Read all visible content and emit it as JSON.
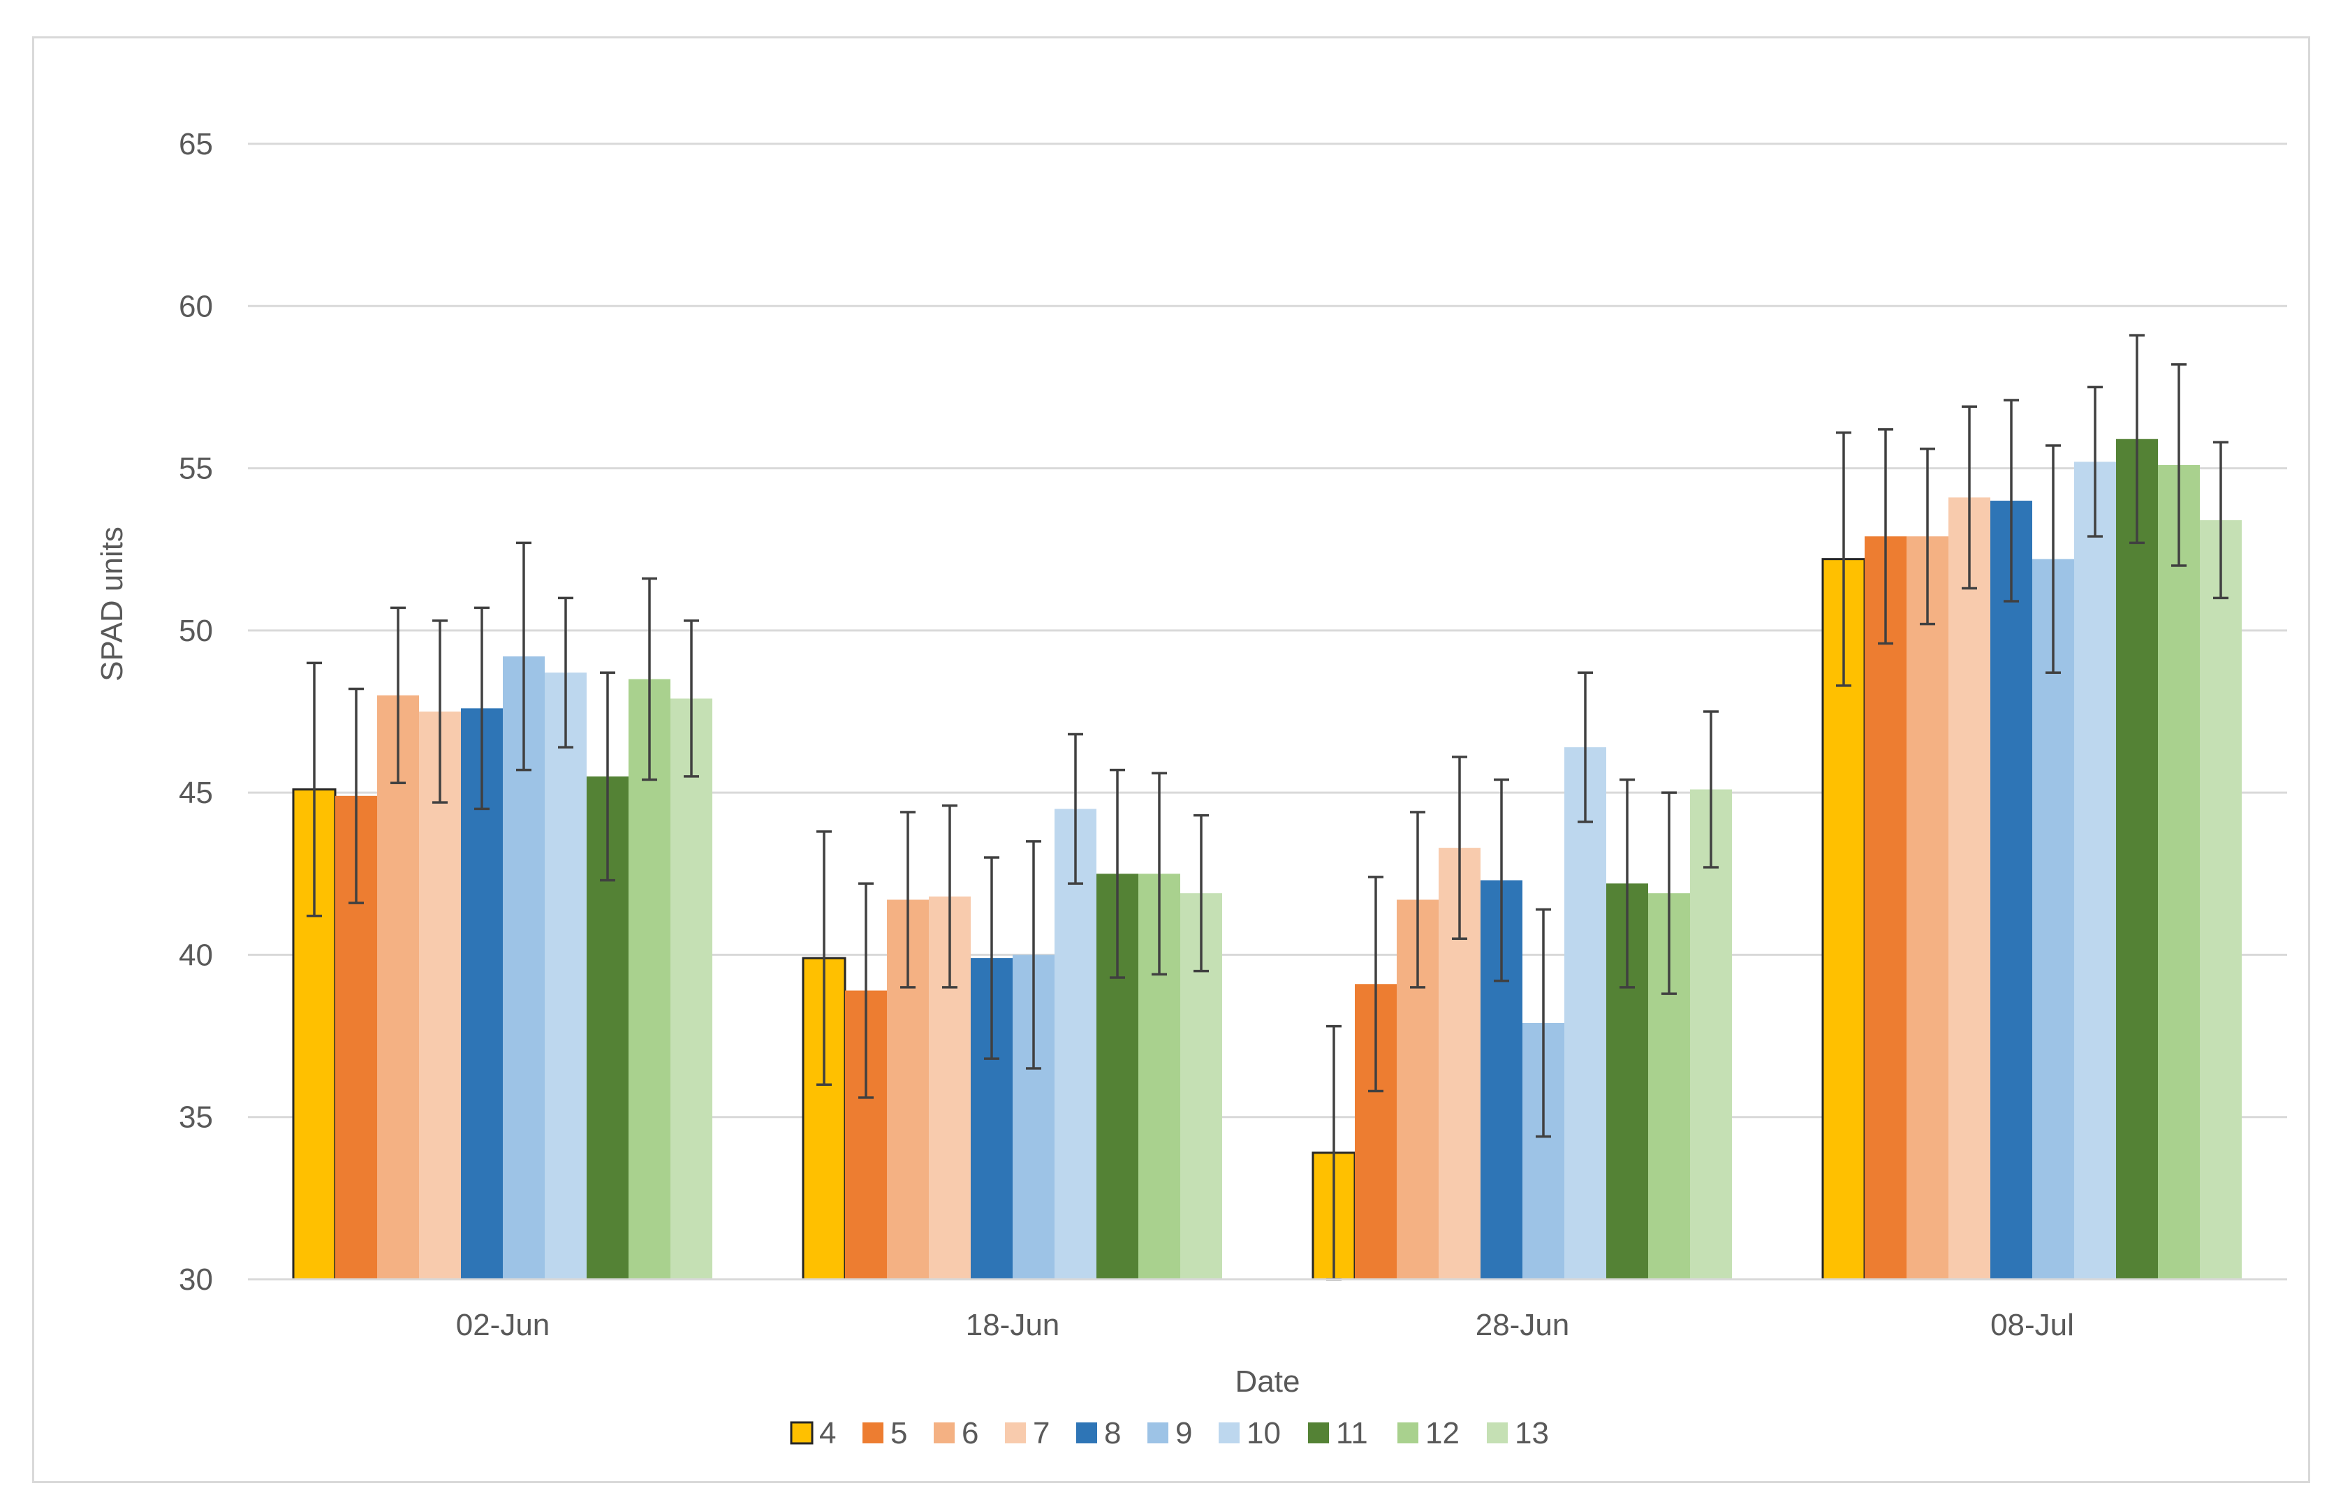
{
  "chart_data": {
    "type": "bar",
    "title": "",
    "xlabel": "Date",
    "ylabel": "SPAD units",
    "ylim": [
      30,
      65
    ],
    "yticks": [
      30,
      35,
      40,
      45,
      50,
      55,
      60,
      65
    ],
    "grid": true,
    "legend_position": "bottom",
    "categories": [
      "02-Jun",
      "18-Jun",
      "28-Jun",
      "08-Jul"
    ],
    "series": [
      {
        "name": "4",
        "color": "#FFC000",
        "outlined": true,
        "values": [
          45.1,
          39.9,
          33.9,
          52.2
        ],
        "errors": [
          3.9,
          3.9,
          3.9,
          3.9
        ]
      },
      {
        "name": "5",
        "color": "#ED7D31",
        "values": [
          44.9,
          38.9,
          39.1,
          52.9
        ],
        "errors": [
          3.3,
          3.3,
          3.3,
          3.3
        ]
      },
      {
        "name": "6",
        "color": "#F4B183",
        "values": [
          48.0,
          41.7,
          41.7,
          52.9
        ],
        "errors": [
          2.7,
          2.7,
          2.7,
          2.7
        ]
      },
      {
        "name": "7",
        "color": "#F8CBAD",
        "values": [
          47.5,
          41.8,
          43.3,
          54.1
        ],
        "errors": [
          2.8,
          2.8,
          2.8,
          2.8
        ]
      },
      {
        "name": "8",
        "color": "#2E75B6",
        "values": [
          47.6,
          39.9,
          42.3,
          54.0
        ],
        "errors": [
          3.1,
          3.1,
          3.1,
          3.1
        ]
      },
      {
        "name": "9",
        "color": "#9DC3E6",
        "values": [
          49.2,
          40.0,
          37.9,
          52.2
        ],
        "errors": [
          3.5,
          3.5,
          3.5,
          3.5
        ]
      },
      {
        "name": "10",
        "color": "#BDD7EE",
        "values": [
          48.7,
          44.5,
          46.4,
          55.2
        ],
        "errors": [
          2.3,
          2.3,
          2.3,
          2.3
        ]
      },
      {
        "name": "11",
        "color": "#548235",
        "values": [
          45.5,
          42.5,
          42.2,
          55.9
        ],
        "errors": [
          3.2,
          3.2,
          3.2,
          3.2
        ]
      },
      {
        "name": "12",
        "color": "#A9D18E",
        "values": [
          48.5,
          42.5,
          41.9,
          55.1
        ],
        "errors": [
          3.1,
          3.1,
          3.1,
          3.1
        ]
      },
      {
        "name": "13",
        "color": "#C5E0B4",
        "values": [
          47.9,
          41.9,
          45.1,
          53.4
        ],
        "errors": [
          2.4,
          2.4,
          2.4,
          2.4
        ]
      }
    ]
  }
}
